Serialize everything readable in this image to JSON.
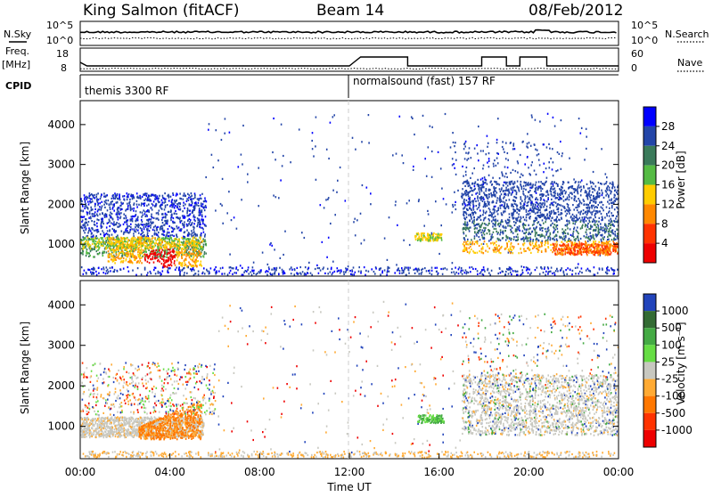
{
  "header": {
    "station": "King Salmon (fitACF)",
    "beam": "Beam 14",
    "date": "08/Feb/2012"
  },
  "panels": {
    "nsky_label": "N.Sky",
    "nsearch_label": "N.Search",
    "noise_tick_top": "10^5",
    "noise_tick_bottom": "10^0",
    "freq_label": "Freq.",
    "freq_unit": "[MHz]",
    "freq_tick_top": "18",
    "freq_tick_bottom": "8",
    "nave_label": "Nave",
    "nave_tick_top": "60",
    "nave_tick_bottom": "0",
    "cpid_label": "CPID",
    "cpid_program_1": "themis 3300 RF",
    "cpid_program_2": "normalsound (fast) 157 RF"
  },
  "chart_data": [
    {
      "type": "heatmap",
      "name_shown": "Power [dB]",
      "ylabel": "Slant Range [km]",
      "ylim": [
        200,
        4600
      ],
      "yticks": [
        "1000",
        "2000",
        "3000",
        "4000"
      ],
      "xlim_hours": [
        0,
        24
      ],
      "colorbar_ticks": [
        "4",
        "8",
        "12",
        "16",
        "20",
        "24",
        "28"
      ],
      "colorbar_label": "Power [dB]",
      "colors": [
        "#0000ff",
        "#2345a8",
        "#3a7a5a",
        "#55bb44",
        "#ffcc00",
        "#ff8800",
        "#ff3300",
        "#ee0000"
      ]
    },
    {
      "type": "heatmap",
      "ylabel": "Slant Range [km]",
      "ylim": [
        200,
        4600
      ],
      "yticks": [
        "1000",
        "2000",
        "3000",
        "4000"
      ],
      "xlim_hours": [
        0,
        24
      ],
      "xticks": [
        "00:00",
        "04:00",
        "08:00",
        "12:00",
        "16:00",
        "20:00",
        "00:00"
      ],
      "xlabel": "Time UT",
      "colorbar_ticks": [
        "1000",
        "500",
        "100",
        "25",
        "-25",
        "-100",
        "-500",
        "-1000"
      ],
      "colorbar_label": "Velocity [m s⁻¹]",
      "colors": [
        "#2244bb",
        "#336b33",
        "#44aa44",
        "#66dd44",
        "#c8c8c0",
        "#ffaa33",
        "#ff7700",
        "#ff3300",
        "#ee0000"
      ]
    }
  ]
}
